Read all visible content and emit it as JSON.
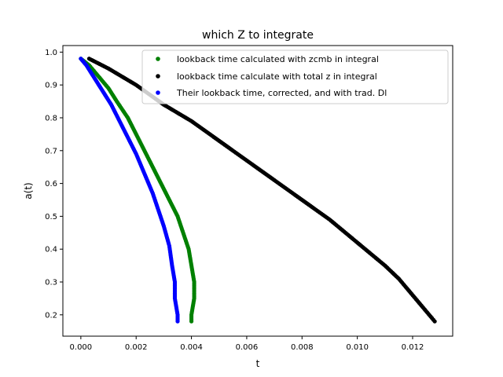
{
  "chart_data": {
    "type": "scatter",
    "title": "which Z to integrate",
    "xlabel": "t",
    "ylabel": "a(t)",
    "xlim": [
      -0.00065,
      0.01345
    ],
    "ylim": [
      0.135,
      1.02
    ],
    "xticks": [
      0.0,
      0.002,
      0.004,
      0.006,
      0.008,
      0.01,
      0.012
    ],
    "xtick_labels": [
      "0.000",
      "0.002",
      "0.004",
      "0.006",
      "0.008",
      "0.010",
      "0.012"
    ],
    "yticks": [
      0.2,
      0.3,
      0.4,
      0.5,
      0.6,
      0.7,
      0.8,
      0.9,
      1.0
    ],
    "ytick_labels": [
      "0.2",
      "0.3",
      "0.4",
      "0.5",
      "0.6",
      "0.7",
      "0.8",
      "0.9",
      "1.0"
    ],
    "grid": false,
    "legend_position": "top-right",
    "series": [
      {
        "name": "lookback time calculated with zcmb in integral",
        "color": "#008000",
        "points": [
          [
            0.0,
            0.98
          ],
          [
            0.0003,
            0.96
          ],
          [
            0.0006,
            0.93
          ],
          [
            0.001,
            0.89
          ],
          [
            0.0013,
            0.85
          ],
          [
            0.0017,
            0.8
          ],
          [
            0.002,
            0.75
          ],
          [
            0.0023,
            0.7
          ],
          [
            0.0026,
            0.65
          ],
          [
            0.0029,
            0.6
          ],
          [
            0.0032,
            0.55
          ],
          [
            0.0035,
            0.5
          ],
          [
            0.0037,
            0.45
          ],
          [
            0.0039,
            0.4
          ],
          [
            0.004,
            0.35
          ],
          [
            0.0041,
            0.3
          ],
          [
            0.0041,
            0.25
          ],
          [
            0.004,
            0.2
          ],
          [
            0.004,
            0.18
          ]
        ]
      },
      {
        "name": "lookback time calculate with total z in integral",
        "color": "#000000",
        "points": [
          [
            0.0003,
            0.98
          ],
          [
            0.001,
            0.95
          ],
          [
            0.002,
            0.9
          ],
          [
            0.003,
            0.84
          ],
          [
            0.004,
            0.79
          ],
          [
            0.005,
            0.73
          ],
          [
            0.006,
            0.67
          ],
          [
            0.007,
            0.61
          ],
          [
            0.008,
            0.55
          ],
          [
            0.009,
            0.49
          ],
          [
            0.01,
            0.42
          ],
          [
            0.011,
            0.35
          ],
          [
            0.0115,
            0.31
          ],
          [
            0.012,
            0.26
          ],
          [
            0.0124,
            0.22
          ],
          [
            0.0127,
            0.19
          ],
          [
            0.0128,
            0.18
          ]
        ]
      },
      {
        "name": "Their lookback time, corrected, and with trad. Dl",
        "color": "#0000ff",
        "points": [
          [
            0.0,
            0.98
          ],
          [
            0.0002,
            0.96
          ],
          [
            0.0005,
            0.92
          ],
          [
            0.0008,
            0.88
          ],
          [
            0.0011,
            0.84
          ],
          [
            0.0014,
            0.79
          ],
          [
            0.0017,
            0.74
          ],
          [
            0.002,
            0.69
          ],
          [
            0.0023,
            0.63
          ],
          [
            0.0026,
            0.57
          ],
          [
            0.0028,
            0.52
          ],
          [
            0.003,
            0.47
          ],
          [
            0.0032,
            0.41
          ],
          [
            0.0033,
            0.35
          ],
          [
            0.0034,
            0.3
          ],
          [
            0.0034,
            0.25
          ],
          [
            0.0035,
            0.2
          ],
          [
            0.0035,
            0.18
          ]
        ]
      }
    ]
  }
}
